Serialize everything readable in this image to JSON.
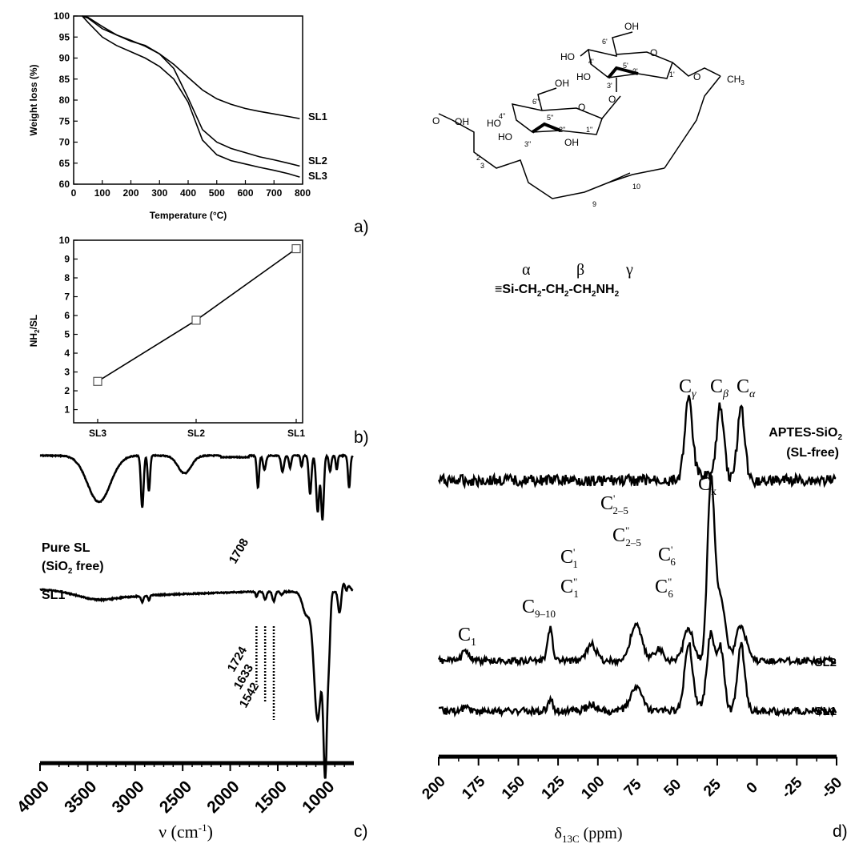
{
  "figure": {
    "panel_labels": [
      "a)",
      "b)",
      "c)",
      "d)"
    ],
    "aptes_formula": {
      "prefix": "≡Si-CH",
      "mid1": "-CH",
      "mid2": "-CH",
      "tail": "NH",
      "sub": "2",
      "alpha": "α",
      "beta": "β",
      "gamma": "γ"
    },
    "structure_labels": {
      "oh": "OH",
      "ho": "HO",
      "o": "O",
      "ch3": "CH",
      "ch3_sub": "3",
      "n_6p": "6'",
      "n_5p": "5'",
      "n_4p": "4'",
      "n_3p": "3'",
      "n_2p": "2'",
      "n_1p": "1'",
      "n_6pp": "6\"",
      "n_5pp": "5\"",
      "n_4pp": "4\"",
      "n_3pp": "3\"",
      "n_2pp": "2\"",
      "n_1pp": "1\"",
      "n_2": "2",
      "n_3": "3",
      "n_9": "9",
      "n_10": "10"
    }
  },
  "chart_data": [
    {
      "id": "a",
      "type": "line",
      "xlabel": "Temperature (°C)",
      "ylabel": "Weight loss (%)",
      "xlim": [
        0,
        800
      ],
      "ylim": [
        60,
        100
      ],
      "xticks": [
        0,
        100,
        200,
        300,
        400,
        500,
        600,
        700,
        800
      ],
      "yticks": [
        60,
        65,
        70,
        75,
        80,
        85,
        90,
        95,
        100
      ],
      "series": [
        {
          "name": "SL1",
          "x": [
            30,
            50,
            100,
            150,
            200,
            250,
            300,
            350,
            400,
            450,
            500,
            550,
            600,
            650,
            700,
            750,
            790
          ],
          "y": [
            100,
            99.7,
            97.5,
            95.5,
            94.2,
            92.8,
            91,
            88.5,
            85.4,
            82.4,
            80.3,
            79,
            78,
            77.3,
            76.7,
            76.1,
            75.6
          ]
        },
        {
          "name": "SL2",
          "x": [
            30,
            50,
            100,
            150,
            200,
            250,
            300,
            350,
            400,
            450,
            500,
            550,
            600,
            650,
            700,
            750,
            790
          ],
          "y": [
            100,
            99.5,
            97,
            95.5,
            94,
            93,
            91,
            87.5,
            80.5,
            73,
            70,
            68.5,
            67.5,
            66.5,
            65.8,
            65,
            64.3
          ]
        },
        {
          "name": "SL3",
          "x": [
            30,
            50,
            100,
            150,
            200,
            250,
            300,
            350,
            400,
            450,
            500,
            550,
            600,
            650,
            700,
            750,
            790
          ],
          "y": [
            100,
            98.5,
            95,
            93,
            91.5,
            90,
            88,
            85,
            79.5,
            70.5,
            67,
            65.6,
            64.8,
            64,
            63.3,
            62.5,
            61.7
          ]
        }
      ]
    },
    {
      "id": "b",
      "type": "line",
      "xlabel": "",
      "ylabel": "NH2/SL",
      "categories": [
        "SL3",
        "SL2",
        "SL1"
      ],
      "ylim": [
        0.3,
        10
      ],
      "yticks": [
        1,
        2,
        3,
        4,
        5,
        6,
        7,
        8,
        9,
        10
      ],
      "series": [
        {
          "values": [
            2.5,
            5.75,
            9.55
          ]
        }
      ]
    },
    {
      "id": "c",
      "type": "line",
      "xlabel": "ν (cm-1)",
      "xlim": [
        4000,
        700
      ],
      "xticks": [
        4000,
        3500,
        3000,
        2500,
        2000,
        1500,
        1000
      ],
      "series": [
        {
          "name": "Pure SL (SiO2 free)"
        },
        {
          "name": "SL1"
        }
      ],
      "annotations": [
        "1708",
        "1724",
        "1633",
        "1542"
      ]
    },
    {
      "id": "d",
      "type": "line",
      "xlabel": "δ13C (ppm)",
      "xlim": [
        200,
        -50
      ],
      "xticks": [
        200,
        175,
        150,
        125,
        100,
        75,
        50,
        25,
        0,
        -25,
        -50
      ],
      "series": [
        {
          "name": "APTES-SiO2 (SL-free)"
        },
        {
          "name": "SL2"
        },
        {
          "name": "SL1"
        }
      ],
      "peaks": {
        "C_gamma": 43,
        "C_beta": 23,
        "C_alpha": 10,
        "C_x": 29,
        "C1": 183,
        "C9_10": 130,
        "C1p": 104,
        "C2_5": 76,
        "C6": 62
      }
    }
  ]
}
